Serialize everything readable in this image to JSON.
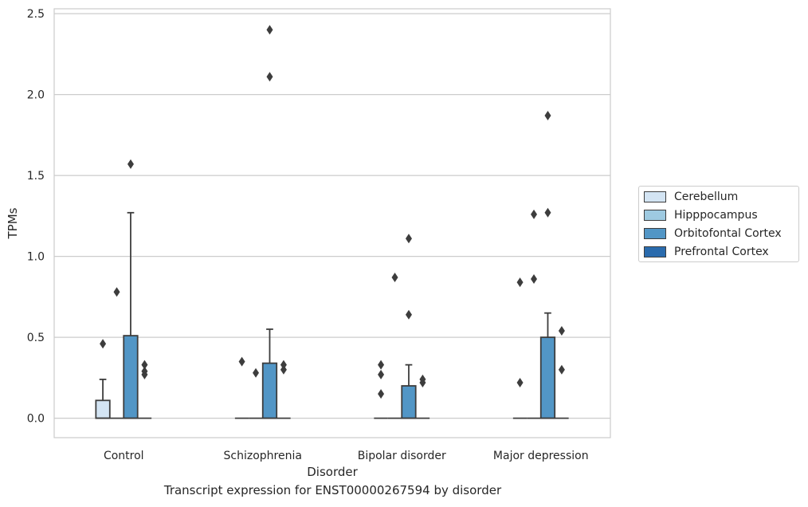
{
  "chart_data": {
    "type": "box",
    "title": "",
    "caption": "Transcript expression for ENST00000267594 by disorder",
    "xlabel": "Disorder",
    "ylabel": "TPMs",
    "ylim": [
      -0.12,
      2.53
    ],
    "yticks": [
      "0.0",
      "0.5",
      "1.0",
      "1.5",
      "2.0",
      "2.5"
    ],
    "ytick_values": [
      0,
      0.5,
      1.0,
      1.5,
      2.0,
      2.5
    ],
    "grid": "horizontal",
    "legend_position": "right",
    "categories": [
      "Control",
      "Schizophrenia",
      "Bipolar disorder",
      "Major depression"
    ],
    "series": [
      {
        "name": "Cerebellum",
        "color": "#d3e4f3",
        "boxes": [
          {
            "q1": 0,
            "median": 0,
            "q3": 0.11,
            "whisker_low": 0,
            "whisker_high": 0.24,
            "outliers": [
              0.46
            ]
          },
          {
            "q1": 0,
            "median": 0,
            "q3": 0,
            "whisker_low": 0,
            "whisker_high": 0,
            "outliers": [
              0.35
            ]
          },
          {
            "q1": 0,
            "median": 0,
            "q3": 0,
            "whisker_low": 0,
            "whisker_high": 0,
            "outliers": [
              0.15,
              0.27,
              0.33
            ]
          },
          {
            "q1": 0,
            "median": 0,
            "q3": 0,
            "whisker_low": 0,
            "whisker_high": 0,
            "outliers": [
              0.22,
              0.84
            ]
          }
        ]
      },
      {
        "name": "Hipppocampus",
        "color": "#9ecae1",
        "boxes": [
          {
            "q1": 0,
            "median": 0,
            "q3": 0,
            "whisker_low": 0,
            "whisker_high": 0,
            "outliers": [
              0.78
            ]
          },
          {
            "q1": 0,
            "median": 0,
            "q3": 0,
            "whisker_low": 0,
            "whisker_high": 0,
            "outliers": [
              0.28
            ]
          },
          {
            "q1": 0,
            "median": 0,
            "q3": 0,
            "whisker_low": 0,
            "whisker_high": 0,
            "outliers": [
              0.87
            ]
          },
          {
            "q1": 0,
            "median": 0,
            "q3": 0,
            "whisker_low": 0,
            "whisker_high": 0,
            "outliers": [
              0.86,
              1.26
            ]
          }
        ]
      },
      {
        "name": "Orbitofontal Cortex",
        "color": "#5296c6",
        "boxes": [
          {
            "q1": 0,
            "median": 0,
            "q3": 0.51,
            "whisker_low": 0,
            "whisker_high": 1.27,
            "outliers": [
              1.57
            ]
          },
          {
            "q1": 0,
            "median": 0,
            "q3": 0.34,
            "whisker_low": 0,
            "whisker_high": 0.55,
            "outliers": [
              2.11,
              2.4
            ]
          },
          {
            "q1": 0,
            "median": 0,
            "q3": 0.2,
            "whisker_low": 0,
            "whisker_high": 0.33,
            "outliers": [
              0.64,
              1.11
            ]
          },
          {
            "q1": 0,
            "median": 0,
            "q3": 0.5,
            "whisker_low": 0,
            "whisker_high": 0.65,
            "outliers": [
              1.27,
              1.87
            ]
          }
        ]
      },
      {
        "name": "Prefrontal Cortex",
        "color": "#2a6bad",
        "boxes": [
          {
            "q1": 0,
            "median": 0,
            "q3": 0,
            "whisker_low": 0,
            "whisker_high": 0,
            "outliers": [
              0.27,
              0.29,
              0.33
            ]
          },
          {
            "q1": 0,
            "median": 0,
            "q3": 0,
            "whisker_low": 0,
            "whisker_high": 0,
            "outliers": [
              0.3,
              0.33
            ]
          },
          {
            "q1": 0,
            "median": 0,
            "q3": 0,
            "whisker_low": 0,
            "whisker_high": 0,
            "outliers": [
              0.22,
              0.24
            ]
          },
          {
            "q1": 0,
            "median": 0,
            "q3": 0,
            "whisker_low": 0,
            "whisker_high": 0,
            "outliers": [
              0.3,
              0.54
            ]
          }
        ]
      }
    ]
  }
}
